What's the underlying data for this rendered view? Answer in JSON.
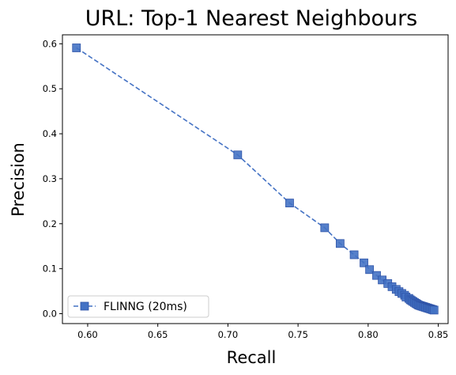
{
  "chart_data": {
    "type": "line",
    "title": "URL: Top-1 Nearest Neighbours",
    "xlabel": "Recall",
    "ylabel": "Precision",
    "xlim": [
      0.582,
      0.857
    ],
    "ylim": [
      -0.022,
      0.62
    ],
    "xticks": [
      0.6,
      0.65,
      0.7,
      0.75,
      0.8,
      0.85
    ],
    "xtick_labels": [
      "0.60",
      "0.65",
      "0.70",
      "0.75",
      "0.80",
      "0.85"
    ],
    "yticks": [
      0.0,
      0.1,
      0.2,
      0.3,
      0.4,
      0.5,
      0.6
    ],
    "ytick_labels": [
      "0.0",
      "0.1",
      "0.2",
      "0.3",
      "0.4",
      "0.5",
      "0.6"
    ],
    "grid": false,
    "legend_position": "lower-left",
    "series": [
      {
        "name": "FLINNG (20ms)",
        "color": "#4472c4",
        "line_style": "dashed",
        "marker": "square",
        "x": [
          0.592,
          0.707,
          0.744,
          0.769,
          0.78,
          0.79,
          0.797,
          0.801,
          0.806,
          0.81,
          0.814,
          0.817,
          0.82,
          0.822,
          0.824,
          0.826,
          0.827,
          0.829,
          0.83,
          0.831,
          0.832,
          0.833,
          0.834,
          0.835,
          0.836,
          0.837,
          0.838,
          0.839,
          0.84,
          0.841,
          0.842,
          0.843,
          0.844,
          0.845,
          0.846,
          0.847
        ],
        "y": [
          0.591,
          0.353,
          0.246,
          0.191,
          0.156,
          0.131,
          0.113,
          0.098,
          0.085,
          0.075,
          0.067,
          0.06,
          0.054,
          0.049,
          0.045,
          0.041,
          0.037,
          0.034,
          0.031,
          0.029,
          0.027,
          0.025,
          0.023,
          0.021,
          0.019,
          0.018,
          0.017,
          0.016,
          0.015,
          0.014,
          0.013,
          0.012,
          0.011,
          0.01,
          0.009,
          0.008
        ]
      }
    ]
  }
}
